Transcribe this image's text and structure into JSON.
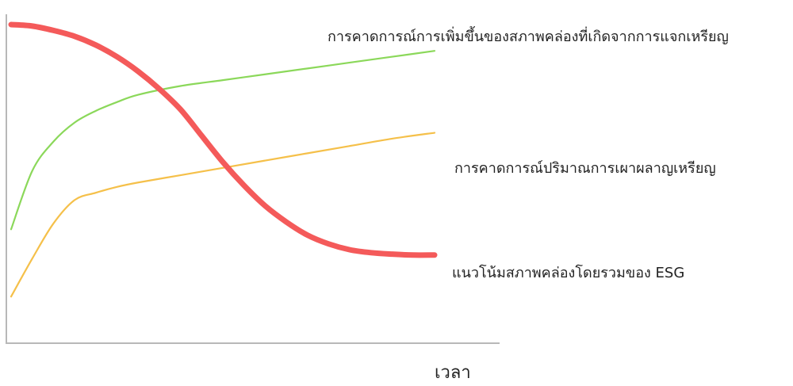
{
  "chart_data": {
    "type": "line",
    "title": "",
    "xlabel": "เวลา",
    "ylabel": "",
    "x_ticks": [],
    "y_ticks": [],
    "grid": false,
    "xlim": [
      0,
      100
    ],
    "ylim": [
      0,
      100
    ],
    "series": [
      {
        "name": "การคาดการณ์การเพิ่มขึ้นของสภาพคล่องที่เกิดจากการแจกเหรียญ",
        "color": "#8bd85a",
        "width": "thin",
        "x": [
          0,
          5,
          10,
          15,
          20,
          25,
          30,
          40,
          50,
          60,
          70,
          80,
          90,
          100
        ],
        "y": [
          30,
          50,
          60,
          66.5,
          70.5,
          73.5,
          76,
          79,
          81,
          83,
          85,
          87,
          89,
          91
        ]
      },
      {
        "name": "การคาดการณ์ปริมาณการเผาผลาญเหรียญ",
        "color": "#f5c04a",
        "width": "thin",
        "x": [
          0,
          5,
          10,
          15,
          20,
          25,
          30,
          40,
          50,
          60,
          70,
          80,
          90,
          100
        ],
        "y": [
          7,
          20,
          32,
          40,
          42.5,
          44.5,
          46,
          48.5,
          51,
          53.5,
          56,
          58.5,
          61,
          63
        ]
      },
      {
        "name": "แนวโน้มสภาพคล่องโดยรวมของ ESG",
        "color": "#f45a5a",
        "width": "thick",
        "x": [
          0,
          5,
          10,
          15,
          20,
          25,
          30,
          35,
          40,
          45,
          50,
          55,
          60,
          65,
          70,
          75,
          80,
          85,
          90,
          95,
          100
        ],
        "y": [
          100,
          99.5,
          98,
          96,
          93,
          89,
          84,
          78,
          71,
          62,
          53,
          45,
          38,
          32.5,
          28,
          25,
          23,
          22,
          21.5,
          21.2,
          21.2
        ]
      }
    ],
    "legend": "inline-right"
  }
}
